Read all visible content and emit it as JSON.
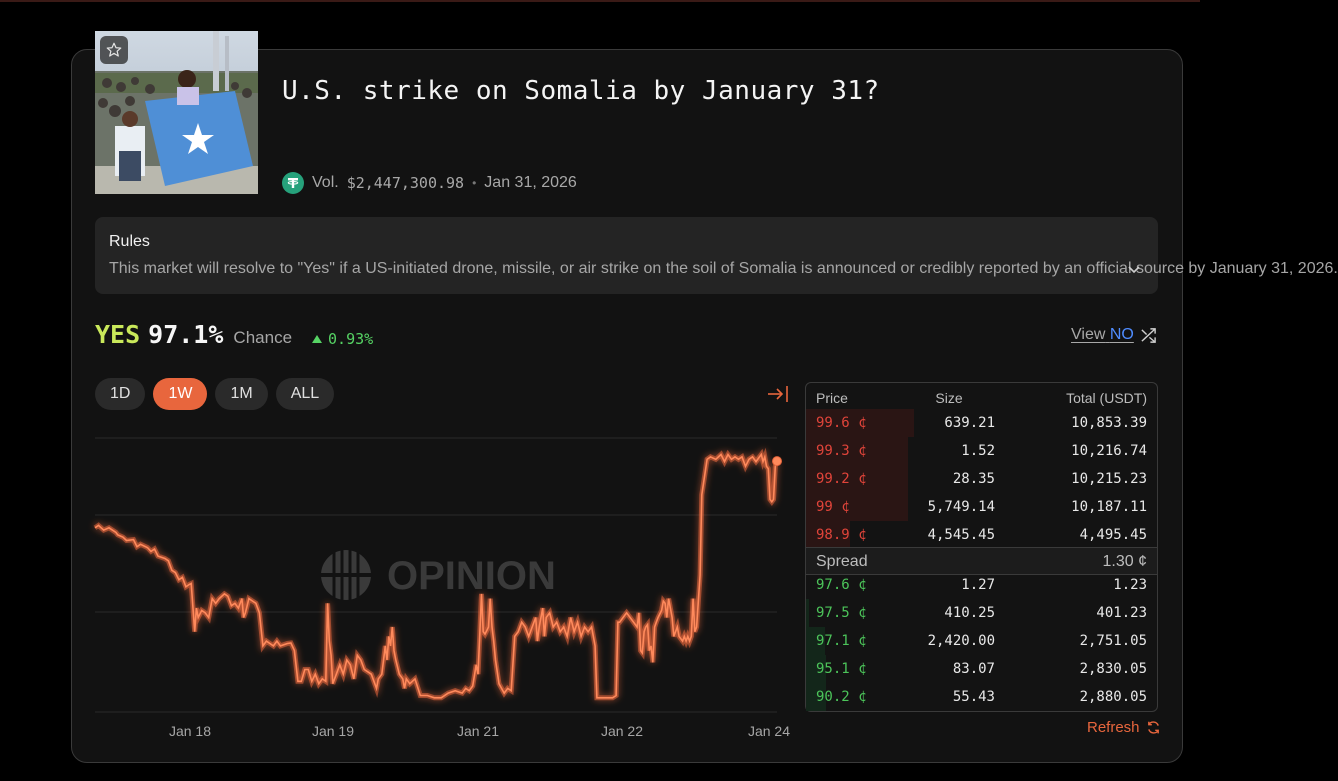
{
  "market": {
    "title": "U.S. strike on Somalia by January 31?",
    "volume_label": "Vol.",
    "volume": "$2,447,300.98",
    "separator": "•",
    "end_date": "Jan 31, 2026"
  },
  "rules": {
    "heading": "Rules",
    "text": "This market will resolve to \"Yes\" if a US-initiated drone, missile, or air strike on the soil of Somalia is announced or credibly reported by an official source by January 31, 2026."
  },
  "outcome": {
    "label": "YES",
    "percent": "97.1%",
    "chance_label": "Chance",
    "delta": "0.93%",
    "delta_color": "#56d364",
    "view_label": "View",
    "view_target": "NO"
  },
  "timeframes": [
    {
      "label": "1D",
      "active": false
    },
    {
      "label": "1W",
      "active": true
    },
    {
      "label": "1M",
      "active": false
    },
    {
      "label": "ALL",
      "active": false
    }
  ],
  "watermark": "OPINION",
  "colors": {
    "accent": "#e8663d",
    "ask": "#e0443a",
    "bid": "#4cc45a",
    "yes": "#c9e85a"
  },
  "icons": {
    "favorite": "star-icon",
    "currency": "tether-icon",
    "expand": "chevron-down-icon",
    "switch": "shuffle-icon",
    "collapse": "collapse-right-icon",
    "refresh": "refresh-icon"
  },
  "chart_data": {
    "type": "line",
    "x_ticks": [
      "Jan 18",
      "Jan 19",
      "Jan 21",
      "Jan 22",
      "Jan 24"
    ],
    "series": [
      {
        "values": [
          [
            0,
            83
          ],
          [
            2,
            83.5
          ],
          [
            5,
            82.5
          ],
          [
            8,
            83
          ],
          [
            12,
            82
          ],
          [
            13,
            81.5
          ],
          [
            16,
            81
          ],
          [
            18,
            80.3
          ],
          [
            22,
            80.5
          ],
          [
            24,
            79
          ],
          [
            26,
            79.5
          ],
          [
            30,
            78.8
          ],
          [
            32,
            78
          ],
          [
            34,
            78.5
          ],
          [
            36,
            77
          ],
          [
            40,
            76.5
          ],
          [
            42,
            76
          ],
          [
            44,
            74
          ],
          [
            46,
            73.5
          ],
          [
            48,
            72
          ],
          [
            50,
            72.5
          ],
          [
            52,
            70.5
          ],
          [
            54,
            71
          ],
          [
            55,
            71.2
          ],
          [
            57,
            61
          ],
          [
            58,
            66
          ],
          [
            59,
            64
          ],
          [
            61,
            65.5
          ],
          [
            63,
            65
          ],
          [
            65,
            64
          ],
          [
            67,
            68
          ],
          [
            69,
            67
          ],
          [
            71,
            68
          ],
          [
            74,
            69
          ],
          [
            76,
            68.5
          ],
          [
            78,
            66.5
          ],
          [
            80,
            67
          ],
          [
            82,
            66
          ],
          [
            84,
            68
          ],
          [
            85,
            64
          ],
          [
            86,
            65
          ],
          [
            88,
            68
          ],
          [
            90,
            67.5
          ],
          [
            92,
            67
          ],
          [
            94,
            65
          ],
          [
            96,
            58
          ],
          [
            98,
            59
          ],
          [
            100,
            58.5
          ],
          [
            102,
            58
          ],
          [
            104,
            59
          ],
          [
            106,
            58
          ],
          [
            110,
            58.5
          ],
          [
            112,
            58.6
          ],
          [
            114,
            57
          ],
          [
            116,
            50.5
          ],
          [
            118,
            50.5
          ],
          [
            120,
            53
          ],
          [
            122,
            53
          ],
          [
            124,
            50.5
          ],
          [
            126,
            52
          ],
          [
            128,
            50
          ],
          [
            130,
            51
          ],
          [
            132,
            50.5
          ],
          [
            133,
            67
          ],
          [
            134,
            59
          ],
          [
            135,
            56
          ],
          [
            136,
            50
          ],
          [
            138,
            52
          ],
          [
            140,
            54
          ],
          [
            142,
            52
          ],
          [
            144,
            55
          ],
          [
            146,
            54
          ],
          [
            148,
            51
          ],
          [
            150,
            56
          ],
          [
            152,
            55
          ],
          [
            154,
            53
          ],
          [
            156,
            52.5
          ],
          [
            158,
            52
          ],
          [
            160,
            50
          ],
          [
            161,
            49
          ],
          [
            162,
            51
          ],
          [
            164,
            52
          ],
          [
            166,
            58
          ],
          [
            167,
            55
          ],
          [
            168,
            60
          ],
          [
            169,
            58
          ],
          [
            170,
            62
          ],
          [
            171,
            57
          ],
          [
            172,
            55
          ],
          [
            174,
            52
          ],
          [
            176,
            51
          ],
          [
            177,
            49
          ],
          [
            178,
            51
          ],
          [
            180,
            50
          ],
          [
            183,
            51
          ],
          [
            186,
            47.5
          ],
          [
            190,
            47.5
          ],
          [
            194,
            47
          ],
          [
            198,
            47
          ],
          [
            202,
            48
          ],
          [
            206,
            48.5
          ],
          [
            210,
            48
          ],
          [
            212,
            49
          ],
          [
            214,
            48.5
          ],
          [
            216,
            49.5
          ],
          [
            218,
            54
          ],
          [
            219,
            52
          ],
          [
            220,
            60
          ],
          [
            221,
            69
          ],
          [
            222,
            61
          ],
          [
            223,
            60.5
          ],
          [
            225,
            62
          ],
          [
            226,
            68
          ],
          [
            227,
            62
          ],
          [
            228,
            59
          ],
          [
            229,
            55
          ],
          [
            231,
            50
          ],
          [
            234,
            48
          ],
          [
            236,
            49
          ],
          [
            238,
            48.5
          ],
          [
            240,
            60
          ],
          [
            242,
            61
          ],
          [
            244,
            63
          ],
          [
            246,
            62
          ],
          [
            248,
            60
          ],
          [
            250,
            62
          ],
          [
            252,
            64
          ],
          [
            253,
            59
          ],
          [
            254,
            62
          ],
          [
            256,
            66
          ],
          [
            257,
            60
          ],
          [
            258,
            64
          ],
          [
            260,
            65
          ],
          [
            262,
            62
          ],
          [
            264,
            63
          ],
          [
            266,
            61
          ],
          [
            268,
            62
          ],
          [
            270,
            60
          ],
          [
            272,
            64
          ],
          [
            274,
            61
          ],
          [
            276,
            63
          ],
          [
            278,
            60
          ],
          [
            280,
            62
          ],
          [
            282,
            61
          ],
          [
            284,
            62
          ],
          [
            286,
            58
          ],
          [
            287,
            47
          ],
          [
            288,
            47
          ],
          [
            290,
            47
          ],
          [
            292,
            47
          ],
          [
            294,
            47
          ],
          [
            296,
            47
          ],
          [
            298,
            47.5
          ],
          [
            299,
            63
          ],
          [
            300,
            63
          ],
          [
            302,
            64
          ],
          [
            304,
            65
          ],
          [
            306,
            64
          ],
          [
            308,
            63
          ],
          [
            310,
            62
          ],
          [
            311,
            65
          ],
          [
            312,
            57
          ],
          [
            313,
            56.5
          ],
          [
            314,
            61
          ],
          [
            315,
            62
          ],
          [
            316,
            62.5
          ],
          [
            317,
            57
          ],
          [
            318,
            58
          ],
          [
            319,
            54.5
          ],
          [
            320,
            62
          ],
          [
            321,
            63
          ],
          [
            322,
            64
          ],
          [
            324,
            65.5
          ],
          [
            325,
            67.5
          ],
          [
            326,
            67
          ],
          [
            327,
            64
          ],
          [
            328,
            68
          ],
          [
            330,
            64
          ],
          [
            331,
            60
          ],
          [
            333,
            62
          ],
          [
            334,
            60
          ],
          [
            336,
            59
          ],
          [
            337,
            60
          ],
          [
            338,
            59
          ],
          [
            339,
            60
          ],
          [
            340,
            59
          ],
          [
            341,
            60
          ],
          [
            342,
            68
          ],
          [
            343,
            61
          ],
          [
            344,
            62
          ],
          [
            346,
            73
          ],
          [
            347,
            90
          ],
          [
            350,
            97.5
          ],
          [
            352,
            98
          ],
          [
            355,
            97.5
          ],
          [
            358,
            98.5
          ],
          [
            360,
            97
          ],
          [
            362,
            98.5
          ],
          [
            364,
            97.5
          ],
          [
            366,
            98
          ],
          [
            368,
            97.5
          ],
          [
            370,
            98
          ],
          [
            372,
            96
          ],
          [
            374,
            97.5
          ],
          [
            376,
            98
          ],
          [
            378,
            97
          ],
          [
            380,
            98
          ],
          [
            381,
            98.5
          ],
          [
            382,
            97
          ],
          [
            383,
            98
          ],
          [
            384,
            96
          ],
          [
            385,
            95.5
          ],
          [
            386,
            89
          ],
          [
            387,
            88.5
          ],
          [
            388,
            89
          ],
          [
            389,
            96
          ],
          [
            390,
            97.1
          ]
        ],
        "color": "#e8663d"
      }
    ],
    "xlim": [
      0,
      390
    ],
    "ylim": [
      44,
      102
    ],
    "grid": true,
    "legend": "none"
  },
  "orderbook": {
    "headers": {
      "price": "Price",
      "size": "Size",
      "total": "Total (USDT)"
    },
    "asks": [
      {
        "price": "99.6 ¢",
        "size": "639.21",
        "total": "10,853.39",
        "depth": 1.0
      },
      {
        "price": "99.3 ¢",
        "size": "1.52",
        "total": "10,216.74",
        "depth": 0.94
      },
      {
        "price": "99.2 ¢",
        "size": "28.35",
        "total": "10,215.23",
        "depth": 0.94
      },
      {
        "price": "99 ¢",
        "size": "5,749.14",
        "total": "10,187.11",
        "depth": 0.94
      },
      {
        "price": "98.9 ¢",
        "size": "4,545.45",
        "total": "4,495.45",
        "depth": 0.41
      }
    ],
    "spread_label": "Spread",
    "spread_value": "1.30 ¢",
    "bids": [
      {
        "price": "97.6 ¢",
        "size": "1.27",
        "total": "1.23",
        "depth": 0.0
      },
      {
        "price": "97.5 ¢",
        "size": "410.25",
        "total": "401.23",
        "depth": 0.14
      },
      {
        "price": "97.1 ¢",
        "size": "2,420.00",
        "total": "2,751.05",
        "depth": 0.96
      },
      {
        "price": "95.1 ¢",
        "size": "83.07",
        "total": "2,830.05",
        "depth": 0.98
      },
      {
        "price": "90.2 ¢",
        "size": "55.43",
        "total": "2,880.05",
        "depth": 1.0
      }
    ],
    "refresh_label": "Refresh"
  }
}
